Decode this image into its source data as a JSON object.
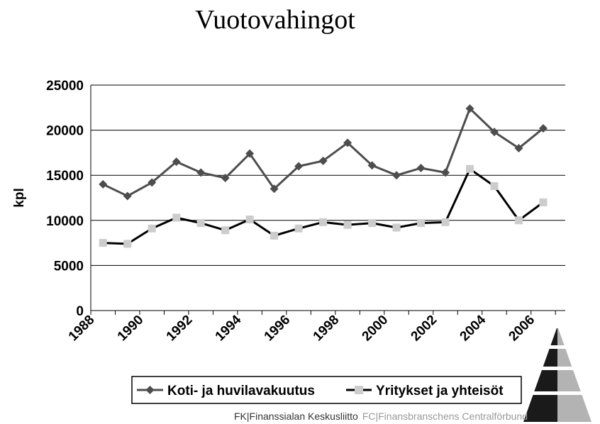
{
  "chart_data": {
    "type": "line",
    "title": "Vuotovahingot",
    "xlabel": "",
    "ylabel": "kpl",
    "ylim": [
      0,
      25000
    ],
    "yticks": [
      "0",
      "5000",
      "10000",
      "15000",
      "20000",
      "25000"
    ],
    "xtick_labels": [
      "1988",
      "1990",
      "1992",
      "1994",
      "1996",
      "1998",
      "2000",
      "2002",
      "2004",
      "2006"
    ],
    "x": [
      1988,
      1989,
      1990,
      1991,
      1992,
      1993,
      1994,
      1995,
      1996,
      1997,
      1998,
      1999,
      2000,
      2001,
      2002,
      2003,
      2004,
      2005,
      2006
    ],
    "grid": "horizontal",
    "legend_position": "bottom",
    "series": [
      {
        "name": "Koti- ja huvilavakuutus",
        "color": "#4d4d4d",
        "marker": "diamond",
        "values": [
          14000,
          12700,
          14200,
          16500,
          15300,
          14700,
          17400,
          13500,
          16000,
          16600,
          18600,
          16100,
          15000,
          15800,
          15300,
          22400,
          19800,
          18000,
          20200
        ]
      },
      {
        "name": "Yritykset ja yhteisöt",
        "color": "#000000",
        "marker_color": "#cccccc",
        "marker": "square",
        "values": [
          7500,
          7400,
          9100,
          10300,
          9700,
          8900,
          10100,
          8300,
          9100,
          9800,
          9500,
          9700,
          9200,
          9700,
          9800,
          15700,
          13800,
          10000,
          12000
        ]
      }
    ]
  },
  "footer": {
    "fk": "FK|Finanssialan Keskusliitto",
    "fc": "FC|Finansbranschens Centralförbund"
  },
  "logo_colors": [
    "#1a1a1a",
    "#b3b3b3"
  ]
}
